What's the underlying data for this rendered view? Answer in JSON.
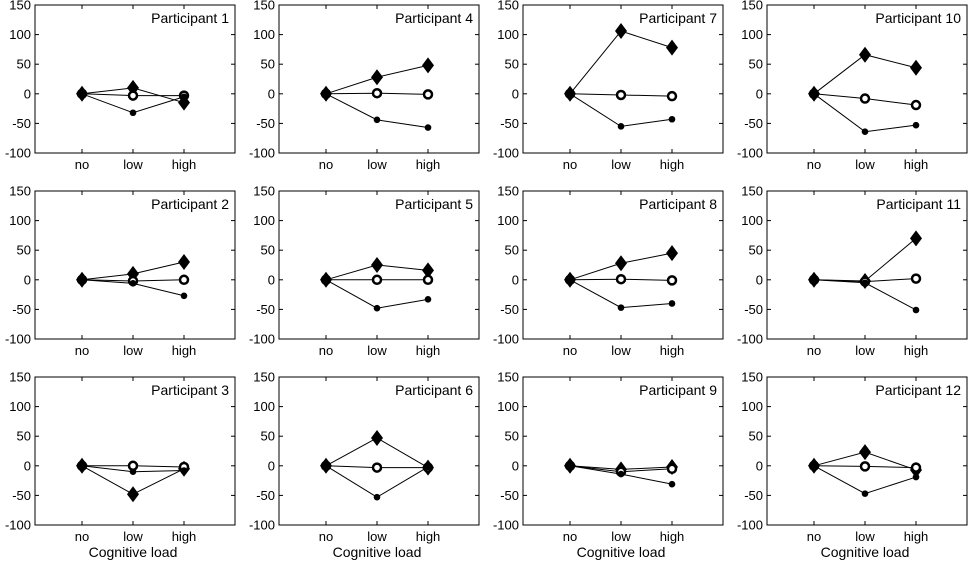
{
  "chart_data": {
    "type": "line",
    "layout": "4 columns x 3 rows of small-multiple panels",
    "xlabel": "Cognitive load",
    "categories": [
      "no",
      "low",
      "high"
    ],
    "ylim": [
      -100,
      150
    ],
    "yticks": [
      -100,
      -50,
      0,
      50,
      100,
      150
    ],
    "series_markers": [
      "diamond",
      "open-circle",
      "filled-dot"
    ],
    "panels": [
      {
        "title": "Participant 1",
        "series": [
          {
            "name": "diamond",
            "values": [
              0,
              10,
              -15
            ]
          },
          {
            "name": "open-circle",
            "values": [
              0,
              -3,
              -3
            ]
          },
          {
            "name": "filled-dot",
            "values": [
              0,
              -32,
              -5
            ]
          }
        ]
      },
      {
        "title": "Participant 4",
        "series": [
          {
            "name": "diamond",
            "values": [
              0,
              28,
              48
            ]
          },
          {
            "name": "open-circle",
            "values": [
              0,
              1,
              -1
            ]
          },
          {
            "name": "filled-dot",
            "values": [
              0,
              -44,
              -57
            ]
          }
        ]
      },
      {
        "title": "Participant 7",
        "series": [
          {
            "name": "diamond",
            "values": [
              0,
              106,
              78
            ]
          },
          {
            "name": "open-circle",
            "values": [
              0,
              -2,
              -4
            ]
          },
          {
            "name": "filled-dot",
            "values": [
              0,
              -55,
              -43
            ]
          }
        ]
      },
      {
        "title": "Participant 10",
        "series": [
          {
            "name": "diamond",
            "values": [
              0,
              66,
              44
            ]
          },
          {
            "name": "open-circle",
            "values": [
              0,
              -8,
              -19
            ]
          },
          {
            "name": "filled-dot",
            "values": [
              0,
              -64,
              -53
            ]
          }
        ]
      },
      {
        "title": "Participant 2",
        "series": [
          {
            "name": "diamond",
            "values": [
              0,
              10,
              30
            ]
          },
          {
            "name": "open-circle",
            "values": [
              0,
              -2,
              0
            ]
          },
          {
            "name": "filled-dot",
            "values": [
              0,
              -6,
              -27
            ]
          }
        ]
      },
      {
        "title": "Participant 5",
        "series": [
          {
            "name": "diamond",
            "values": [
              0,
              25,
              16
            ]
          },
          {
            "name": "open-circle",
            "values": [
              0,
              0,
              0
            ]
          },
          {
            "name": "filled-dot",
            "values": [
              0,
              -48,
              -33
            ]
          }
        ]
      },
      {
        "title": "Participant 8",
        "series": [
          {
            "name": "diamond",
            "values": [
              0,
              28,
              45
            ]
          },
          {
            "name": "open-circle",
            "values": [
              0,
              1,
              -1
            ]
          },
          {
            "name": "filled-dot",
            "values": [
              0,
              -47,
              -40
            ]
          }
        ]
      },
      {
        "title": "Participant 11",
        "series": [
          {
            "name": "diamond",
            "values": [
              0,
              -2,
              70
            ]
          },
          {
            "name": "open-circle",
            "values": [
              0,
              -3,
              2
            ]
          },
          {
            "name": "filled-dot",
            "values": [
              0,
              -5,
              -51
            ]
          }
        ]
      },
      {
        "title": "Participant 3",
        "series": [
          {
            "name": "diamond",
            "values": [
              0,
              -48,
              -5
            ]
          },
          {
            "name": "open-circle",
            "values": [
              0,
              0,
              -2
            ]
          },
          {
            "name": "filled-dot",
            "values": [
              0,
              -10,
              -8
            ]
          }
        ]
      },
      {
        "title": "Participant 6",
        "series": [
          {
            "name": "diamond",
            "values": [
              0,
              47,
              -3
            ]
          },
          {
            "name": "open-circle",
            "values": [
              0,
              -3,
              -3
            ]
          },
          {
            "name": "filled-dot",
            "values": [
              0,
              -53,
              -2
            ]
          }
        ]
      },
      {
        "title": "Participant 9",
        "series": [
          {
            "name": "diamond",
            "values": [
              0,
              -6,
              -2
            ]
          },
          {
            "name": "open-circle",
            "values": [
              0,
              -10,
              -5
            ]
          },
          {
            "name": "filled-dot",
            "values": [
              0,
              -14,
              -31
            ]
          }
        ]
      },
      {
        "title": "Participant 12",
        "series": [
          {
            "name": "diamond",
            "values": [
              0,
              23,
              -7
            ]
          },
          {
            "name": "open-circle",
            "values": [
              0,
              -1,
              -3
            ]
          },
          {
            "name": "filled-dot",
            "values": [
              0,
              -47,
              -19
            ]
          }
        ]
      }
    ]
  }
}
